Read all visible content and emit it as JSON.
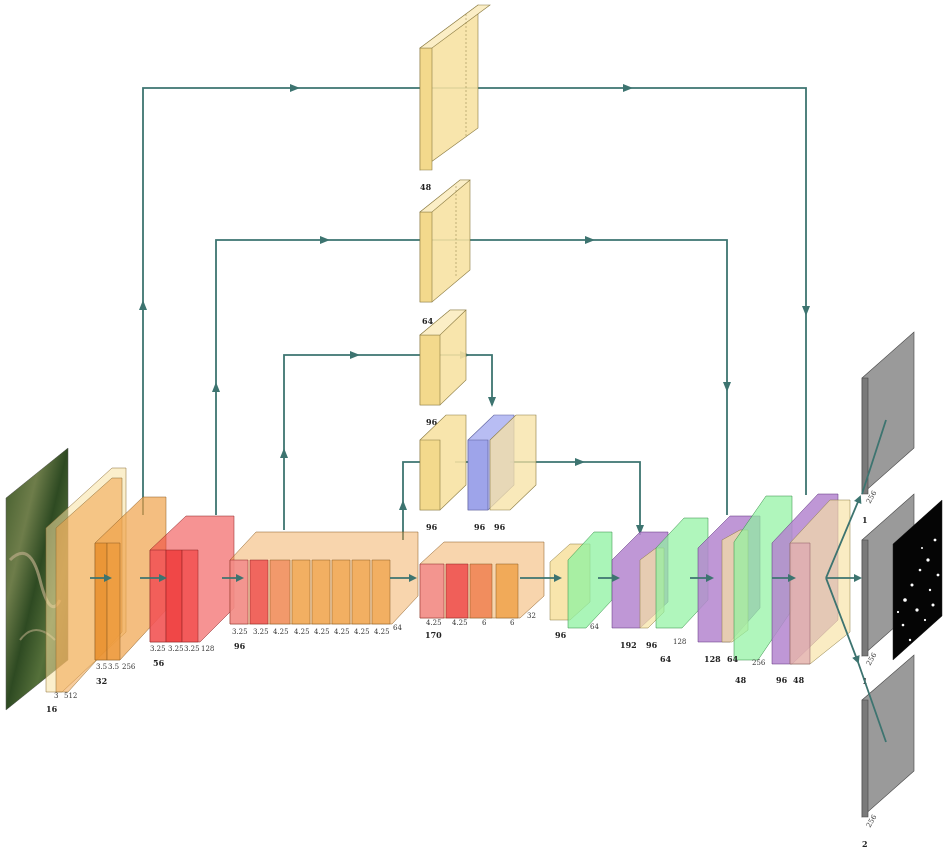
{
  "colors": {
    "conv_orange": "#f0a24a",
    "conv_red": "#ee3a3a",
    "conv_salmon": "#f28a8a",
    "pool_yellow": "#f7e2a3",
    "blue_block": "#b0b6f2",
    "green_block": "#8ef2a0",
    "purple_block": "#b485cf",
    "gray_output": "#9a9a9a",
    "connector": "#3d7470"
  },
  "icons": {
    "input_image": "aerial-forest-image",
    "output_mask": "black-mask-with-white-dots"
  },
  "labels": {
    "input_bottom": "16",
    "input_dims": [
      "3",
      "512"
    ],
    "stage1_bottom": "32",
    "stage1_dims": [
      "3.5",
      "3.5",
      "256"
    ],
    "stage2_bottom": "56",
    "stage2_dims": [
      "3.25",
      "3.25",
      "3.25",
      "128"
    ],
    "stage3_bottom": "96",
    "stage3_dims": [
      "3.25",
      "3.25",
      "4.25",
      "4.25",
      "4.25",
      "4.25",
      "4.25",
      "4.25",
      "64"
    ],
    "stage4_bottom": "170",
    "stage4_dims": [
      "4.25",
      "4.25",
      "6",
      "6",
      "32"
    ],
    "top1": "48",
    "top2": "64",
    "top3": "96",
    "mid_left": "96",
    "mid_blue": "96",
    "mid_right": "96",
    "dec1_bottom": "96",
    "dec1_dim": "64",
    "dec2_bottom": "192",
    "dec2_b": "96",
    "dec3_bottom": "64",
    "dec3_dim": "128",
    "dec4_bottom": "128",
    "dec4_b": "64",
    "dec4_dim": "256",
    "dec5_bottom": "48",
    "dec6_bottom": "96",
    "dec6_b": "48",
    "out1_dim": "256",
    "out1_label": "1",
    "out2_dim": "256",
    "out2_label": "1",
    "out3_dim": "256",
    "out3_label": "2"
  }
}
